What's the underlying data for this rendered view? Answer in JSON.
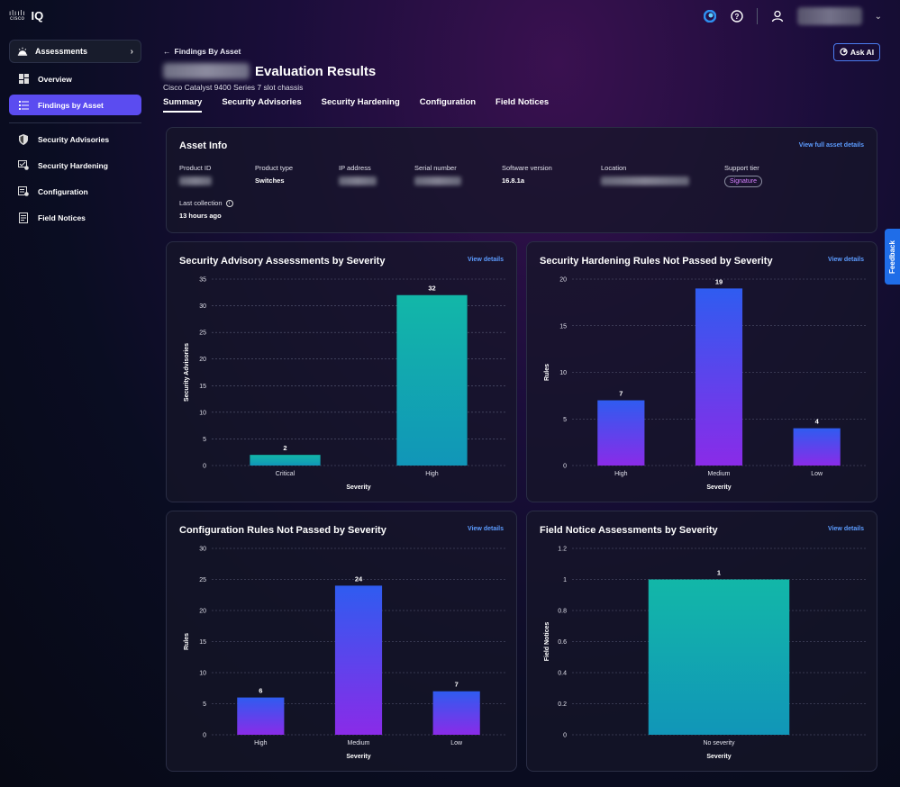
{
  "app": {
    "logo_text": "cisco",
    "logo_suffix": "IQ"
  },
  "header": {
    "icons": [
      "cisco-status-icon",
      "help-icon",
      "user-icon",
      "chevron-down-icon"
    ]
  },
  "sidebar": {
    "assessments_label": "Assessments",
    "items": [
      {
        "label": "Overview",
        "icon": "overview-icon"
      },
      {
        "label": "Findings by Asset",
        "icon": "list-icon",
        "active": true
      },
      {
        "label": "Security Advisories",
        "icon": "shield-icon"
      },
      {
        "label": "Security Hardening",
        "icon": "hardening-icon"
      },
      {
        "label": "Configuration",
        "icon": "configuration-icon"
      },
      {
        "label": "Field Notices",
        "icon": "notice-icon"
      }
    ]
  },
  "main": {
    "back_label": "Findings By Asset",
    "title": "Evaluation Results",
    "subtitle": "Cisco Catalyst 9400 Series 7 slot chassis",
    "ask_ai": "Ask AI",
    "tabs": [
      "Summary",
      "Security Advisories",
      "Security Hardening",
      "Configuration",
      "Field Notices"
    ],
    "active_tab": "Summary"
  },
  "asset_info": {
    "title": "Asset Info",
    "view_link": "View full asset details",
    "product_id_label": "Product ID",
    "product_type_label": "Product type",
    "product_type_value": "Switches",
    "ip_label": "IP address",
    "serial_label": "Serial number",
    "software_label": "Software version",
    "software_value": "16.8.1a",
    "location_label": "Location",
    "support_label": "Support tier",
    "support_value": "Signature",
    "last_collection_label": "Last collection",
    "last_collection_value": "13 hours ago"
  },
  "feedback_label": "Feedback",
  "colors": {
    "accent": "#5b4cf0",
    "link": "#5c9cff",
    "teal_top": "#12b7a8",
    "teal_bottom": "#1196b8",
    "blue_top": "#2f5cf0",
    "purple_bottom": "#8a2be8"
  },
  "chart_data": [
    {
      "type": "bar",
      "title": "Security Advisory Assessments by Severity",
      "view_link": "View details",
      "xlabel": "Severity",
      "ylabel": "Security Advisories",
      "categories": [
        "Critical",
        "High"
      ],
      "values": [
        2,
        32
      ],
      "ylim": [
        0,
        35
      ],
      "yticks": [
        0,
        5,
        10,
        15,
        20,
        25,
        30,
        35
      ],
      "style": "teal"
    },
    {
      "type": "bar",
      "title": "Security Hardening Rules Not Passed by Severity",
      "view_link": "View details",
      "xlabel": "Severity",
      "ylabel": "Rules",
      "categories": [
        "High",
        "Medium",
        "Low"
      ],
      "values": [
        7,
        19,
        4
      ],
      "ylim": [
        0,
        20
      ],
      "yticks": [
        0,
        5,
        10,
        15,
        20
      ],
      "style": "purple"
    },
    {
      "type": "bar",
      "title": "Configuration Rules Not Passed by Severity",
      "view_link": "View details",
      "xlabel": "Severity",
      "ylabel": "Rules",
      "categories": [
        "High",
        "Medium",
        "Low"
      ],
      "values": [
        6,
        24,
        7
      ],
      "ylim": [
        0,
        30
      ],
      "yticks": [
        0,
        5,
        10,
        15,
        20,
        25,
        30
      ],
      "style": "purple"
    },
    {
      "type": "bar",
      "title": "Field Notice Assessments by Severity",
      "view_link": "View details",
      "xlabel": "Severity",
      "ylabel": "Field Notices",
      "categories": [
        "No severity"
      ],
      "values": [
        1
      ],
      "ylim": [
        0,
        1.2
      ],
      "yticks": [
        "0",
        "0.2",
        "0.4",
        "0.6",
        "0.8",
        "1",
        "1.2"
      ],
      "style": "teal"
    }
  ]
}
